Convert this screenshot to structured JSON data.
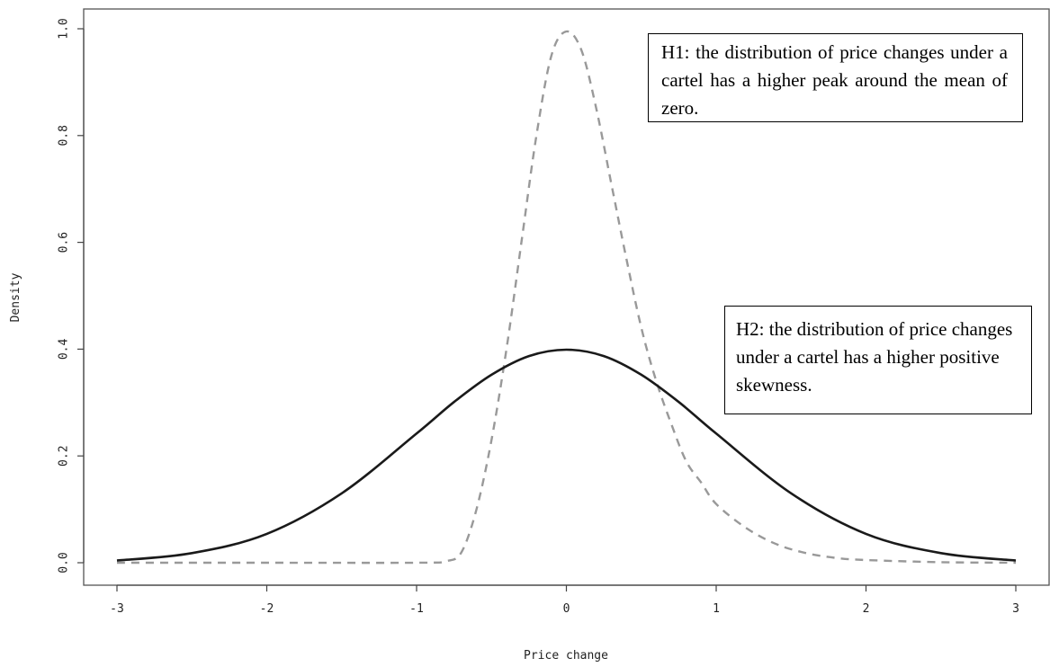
{
  "chart_data": {
    "type": "line",
    "title": "",
    "xlabel": "Price change",
    "ylabel": "Density",
    "xlim": [
      -3,
      3
    ],
    "ylim": [
      0,
      1.0
    ],
    "x_ticks": [
      "-3",
      "-2",
      "-1",
      "0",
      "1",
      "2",
      "3"
    ],
    "y_ticks": [
      "0.0",
      "0.2",
      "0.4",
      "0.6",
      "0.8",
      "1.0"
    ],
    "grid": false,
    "series": [
      {
        "style": "solid",
        "color": "#1a1a1a",
        "x": [
          -3.0,
          -2.5,
          -2.0,
          -1.5,
          -1.0,
          -0.75,
          -0.5,
          -0.25,
          0.0,
          0.25,
          0.5,
          0.75,
          1.0,
          1.5,
          2.0,
          2.5,
          3.0
        ],
        "values": [
          0.004,
          0.018,
          0.054,
          0.13,
          0.242,
          0.301,
          0.352,
          0.387,
          0.399,
          0.387,
          0.352,
          0.301,
          0.242,
          0.13,
          0.054,
          0.018,
          0.004
        ]
      },
      {
        "style": "dashed",
        "color": "#999999",
        "x": [
          -3.0,
          -2.0,
          -1.0,
          -0.8,
          -0.7,
          -0.6,
          -0.5,
          -0.4,
          -0.3,
          -0.2,
          -0.1,
          0.0,
          0.1,
          0.2,
          0.3,
          0.4,
          0.5,
          0.6,
          0.7,
          0.8,
          0.9,
          1.0,
          1.2,
          1.4,
          1.6,
          1.8,
          2.0,
          2.5,
          3.0
        ],
        "values": [
          0.0,
          0.0,
          0.0,
          0.003,
          0.02,
          0.1,
          0.23,
          0.4,
          0.6,
          0.8,
          0.95,
          0.995,
          0.96,
          0.85,
          0.71,
          0.57,
          0.44,
          0.34,
          0.26,
          0.19,
          0.15,
          0.11,
          0.065,
          0.035,
          0.018,
          0.009,
          0.005,
          0.001,
          0.0
        ]
      }
    ],
    "annotations": [
      {
        "id": "h1",
        "text": "H1: the distribution of price changes under a cartel has a higher peak around the mean of zero."
      },
      {
        "id": "h2",
        "text": "H2: the distribution of price changes under a cartel has a higher positive skewness."
      }
    ]
  }
}
